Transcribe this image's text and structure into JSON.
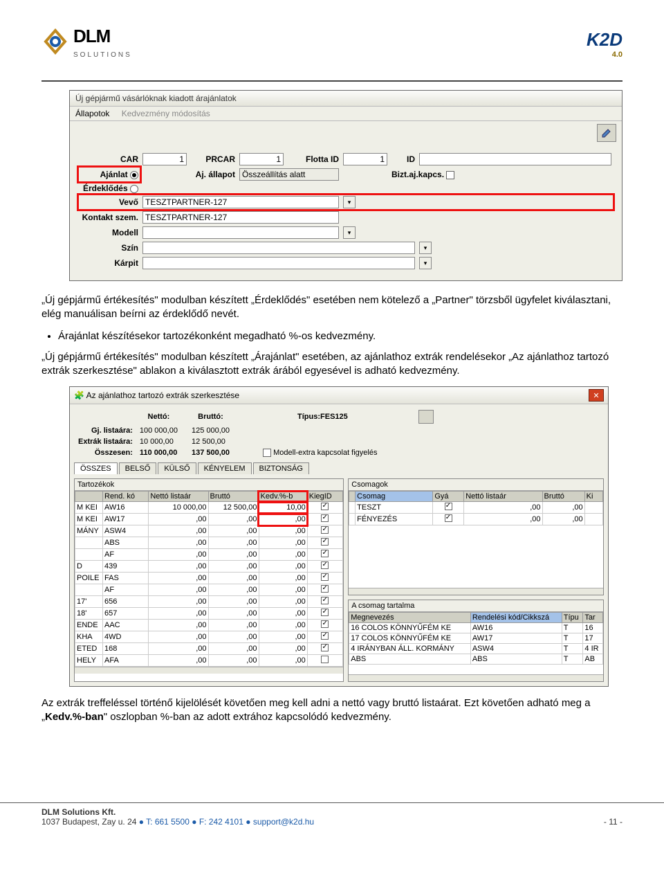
{
  "header": {
    "logo_left_main": "DLM",
    "logo_left_sub": "SOLUTIONS",
    "logo_right": "K2D",
    "logo_right_ver": "4.0"
  },
  "screenshot1": {
    "title": "Új gépjármű vásárlóknak kiadott árajánlatok",
    "menu_item1": "Állapotok",
    "menu_item2": "Kedvezmény módosítás",
    "fields": {
      "car_lbl": "CAR",
      "car_val": "1",
      "prcar_lbl": "PRCAR",
      "prcar_val": "1",
      "flotta_lbl": "Flotta ID",
      "flotta_val": "1",
      "id_lbl": "ID",
      "ajanlat_lbl": "Ajánlat",
      "erdeklodes_lbl": "Érdeklődés",
      "ajallapot_lbl": "Aj. állapot",
      "ajallapot_val": "Összeállítás alatt",
      "bizt_lbl": "Bizt.aj.kapcs.",
      "vevo_lbl": "Vevő",
      "vevo_val": "TESZTPARTNER-127",
      "kontakt_lbl": "Kontakt szem.",
      "kontakt_val": "TESZTPARTNER-127",
      "modell_lbl": "Modell",
      "szin_lbl": "Szín",
      "karpit_lbl": "Kárpit"
    }
  },
  "para1": "„Új gépjármű értékesítés\" modulban készített „Érdeklődés\" esetében nem kötelező a „Partner\" törzsből ügyfelet kiválasztani, elég manuálisan beírni az érdeklődő nevét.",
  "bullet1": "Árajánlat készítésekor tartozékonként megadható %-os kedvezmény.",
  "para2": "„Új gépjármű értékesítés\" modulban készített „Árajánlat\" esetében, az ajánlathoz extrák rendelésekor „Az ajánlathoz tartozó extrák szerkesztése\" ablakon a kiválasztott extrák árából egyesével is adható kedvezmény.",
  "screenshot2": {
    "title": "Az ajánlathoz tartozó extrák szerkesztése",
    "summary": {
      "h_netto": "Nettó:",
      "h_brutto": "Bruttó:",
      "tipus": "Típus:FES125",
      "r1_lbl": "Gj. listaára:",
      "r1_netto": "100 000,00",
      "r1_brutto": "125 000,00",
      "r2_lbl": "Extrák listaára:",
      "r2_netto": "10 000,00",
      "r2_brutto": "12 500,00",
      "r3_lbl": "Összesen:",
      "r3_netto": "110 000,00",
      "r3_brutto": "137 500,00",
      "modelextra_lbl": "Modell-extra kapcsolat figyelés"
    },
    "tabs": [
      "ÖSSZES",
      "BELSŐ",
      "KÜLSŐ",
      "KÉNYELEM",
      "BIZTONSÁG"
    ],
    "left": {
      "title": "Tartozékok",
      "cols": [
        "Rend. kó",
        "Nettó listaár",
        "Bruttó",
        "Kedv.%-b",
        "KiegID"
      ],
      "rows": [
        [
          "M KEI",
          "AW16",
          "10 000,00",
          "12 500,00",
          "10,00",
          true
        ],
        [
          "M KEI",
          "AW17",
          ",00",
          ",00",
          ",00",
          true
        ],
        [
          "MÁNY",
          "ASW4",
          ",00",
          ",00",
          ",00",
          true
        ],
        [
          "",
          "ABS",
          ",00",
          ",00",
          ",00",
          true
        ],
        [
          "",
          "AF",
          ",00",
          ",00",
          ",00",
          true
        ],
        [
          "D",
          "439",
          ",00",
          ",00",
          ",00",
          true
        ],
        [
          "POILE",
          "FAS",
          ",00",
          ",00",
          ",00",
          true
        ],
        [
          "",
          "AF",
          ",00",
          ",00",
          ",00",
          true
        ],
        [
          "17'",
          "656",
          ",00",
          ",00",
          ",00",
          true
        ],
        [
          "18'",
          "657",
          ",00",
          ",00",
          ",00",
          true
        ],
        [
          "ENDE",
          "AAC",
          ",00",
          ",00",
          ",00",
          true
        ],
        [
          "KHA",
          "4WD",
          ",00",
          ",00",
          ",00",
          true
        ],
        [
          "ETED",
          "168",
          ",00",
          ",00",
          ",00",
          true
        ],
        [
          "HELY",
          "AFA",
          ",00",
          ",00",
          ",00",
          false
        ]
      ]
    },
    "right_top": {
      "title": "Csomagok",
      "cols": [
        "",
        "Csomag",
        "Gyá",
        "Nettó listaár",
        "Bruttó",
        "Ki"
      ],
      "rows": [
        [
          "",
          "TESZT",
          "",
          ",00",
          ",00",
          ""
        ],
        [
          "",
          "FÉNYEZÉS",
          "",
          ",00",
          ",00",
          ""
        ]
      ]
    },
    "right_bottom": {
      "title": "A csomag tartalma",
      "cols": [
        "Megnevezés",
        "Rendelési kód/Cikkszá",
        "Típu",
        "Tar"
      ],
      "rows": [
        [
          "16 COLOS KÖNNYŰFÉM KE",
          "AW16",
          "T",
          "16"
        ],
        [
          "17 COLOS KÖNNYŰFÉM KE",
          "AW17",
          "T",
          "17"
        ],
        [
          "4 IRÁNYBAN ÁLL. KORMÁNY",
          "ASW4",
          "T",
          "4 IR"
        ],
        [
          "ABS",
          "ABS",
          "T",
          "AB"
        ]
      ]
    }
  },
  "para3_a": "Az extrák treffeléssel történő kijelölését követően meg kell adni a nettó vagy bruttó listaárat. Ezt követően adható meg a „",
  "para3_b": "Kedv.%-ban",
  "para3_c": "\" oszlopban %-ban az adott extrához kapcsolódó kedvezmény.",
  "footer": {
    "company": "DLM Solutions Kft.",
    "addr": "1037 Budapest, Zay u. 24",
    "dot": " ● ",
    "tel": "T: 661 5500",
    "fax": "F: 242 4101",
    "mail": "support@k2d.hu",
    "page": "- 11 -"
  }
}
